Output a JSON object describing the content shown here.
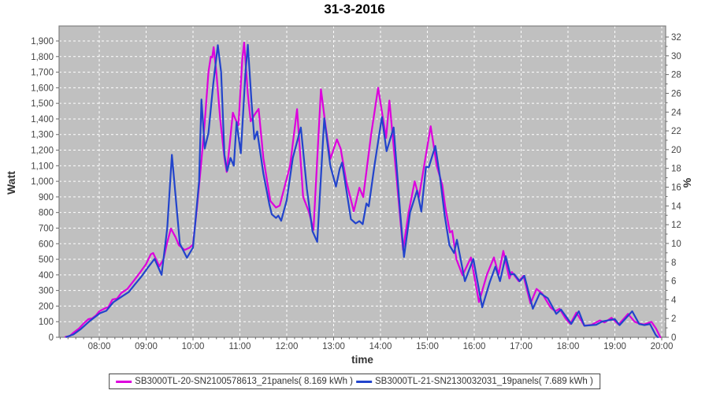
{
  "title": "31-3-2016",
  "colors": {
    "plot_background": "#c0c0c0",
    "plot_border": "#808080",
    "gridline": "#ffffff",
    "tick": "#666666",
    "tick_label": "#444444",
    "series1": "#dd00dd",
    "series2": "#2244cc"
  },
  "axes": {
    "y_left": {
      "label": "Watt",
      "min": 0,
      "max": 1900,
      "tick_step": 100,
      "tick_labels": [
        "0",
        "100",
        "200",
        "300",
        "400",
        "500",
        "600",
        "700",
        "800",
        "900",
        "1,000",
        "1,100",
        "1,200",
        "1,300",
        "1,400",
        "1,500",
        "1,600",
        "1,700",
        "1,800",
        "1,900"
      ]
    },
    "y_right": {
      "label": "%",
      "min": 0,
      "max": 32,
      "tick_step": 2,
      "tick_labels": [
        "0",
        "2",
        "4",
        "6",
        "8",
        "10",
        "12",
        "14",
        "16",
        "18",
        "20",
        "22",
        "24",
        "26",
        "28",
        "30",
        "32"
      ]
    },
    "x": {
      "label": "time",
      "first_hour": 8,
      "tick_labels": [
        "08:00",
        "09:00",
        "10:00",
        "11:00",
        "12:00",
        "13:00",
        "14:00",
        "15:00",
        "16:00",
        "17:00",
        "18:00",
        "19:00",
        "20:00"
      ]
    }
  },
  "legend": {
    "items": [
      {
        "label": "SB3000TL-20-SN2100578613_21panels( 8.169 kWh )",
        "color": "#dd00dd"
      },
      {
        "label": "SB3000TL-21-SN2130032031_19panels( 7.689 kWh )",
        "color": "#2244cc"
      }
    ]
  },
  "chart_data": {
    "type": "line",
    "title": "31-3-2016",
    "xlabel": "time",
    "ylabel": "Watt",
    "y2label": "%",
    "xlim_hours": [
      7.14,
      20.08
    ],
    "ylim": [
      0,
      1900
    ],
    "y2lim": [
      0,
      32
    ],
    "grid": true,
    "legend_position": "bottom",
    "series": [
      {
        "name": "SB3000TL-20-SN2100578613_21panels( 8.169 kWh )",
        "color": "#dd00dd",
        "units": "x=hour of day, y=Watt",
        "points": [
          [
            7.28,
            3
          ],
          [
            7.37,
            8
          ],
          [
            7.45,
            30
          ],
          [
            7.57,
            57
          ],
          [
            7.67,
            90
          ],
          [
            7.77,
            116
          ],
          [
            7.85,
            122
          ],
          [
            7.93,
            140
          ],
          [
            8.0,
            167
          ],
          [
            8.12,
            185
          ],
          [
            8.2,
            196
          ],
          [
            8.28,
            242
          ],
          [
            8.38,
            248
          ],
          [
            8.47,
            284
          ],
          [
            8.6,
            310
          ],
          [
            8.73,
            360
          ],
          [
            8.88,
            420
          ],
          [
            9.0,
            470
          ],
          [
            9.1,
            532
          ],
          [
            9.15,
            540
          ],
          [
            9.28,
            455
          ],
          [
            9.37,
            500
          ],
          [
            9.45,
            610
          ],
          [
            9.53,
            697
          ],
          [
            9.63,
            640
          ],
          [
            9.7,
            590
          ],
          [
            9.82,
            560
          ],
          [
            9.93,
            575
          ],
          [
            10.0,
            595
          ],
          [
            10.08,
            820
          ],
          [
            10.17,
            1100
          ],
          [
            10.25,
            1380
          ],
          [
            10.33,
            1700
          ],
          [
            10.38,
            1800
          ],
          [
            10.41,
            1795
          ],
          [
            10.44,
            1860
          ],
          [
            10.5,
            1690
          ],
          [
            10.58,
            1400
          ],
          [
            10.67,
            1150
          ],
          [
            10.72,
            1060
          ],
          [
            10.78,
            1230
          ],
          [
            10.85,
            1440
          ],
          [
            10.9,
            1400
          ],
          [
            10.97,
            1360
          ],
          [
            11.05,
            1780
          ],
          [
            11.09,
            1890
          ],
          [
            11.17,
            1560
          ],
          [
            11.23,
            1385
          ],
          [
            11.32,
            1430
          ],
          [
            11.4,
            1465
          ],
          [
            11.5,
            1150
          ],
          [
            11.65,
            874
          ],
          [
            11.77,
            832
          ],
          [
            11.85,
            845
          ],
          [
            12.07,
            1100
          ],
          [
            12.22,
            1463
          ],
          [
            12.35,
            900
          ],
          [
            12.47,
            806
          ],
          [
            12.57,
            688
          ],
          [
            12.73,
            1590
          ],
          [
            12.83,
            1350
          ],
          [
            12.93,
            1143
          ],
          [
            13.07,
            1269
          ],
          [
            13.15,
            1210
          ],
          [
            13.27,
            1000
          ],
          [
            13.43,
            808
          ],
          [
            13.55,
            959
          ],
          [
            13.63,
            899
          ],
          [
            13.8,
            1300
          ],
          [
            13.95,
            1600
          ],
          [
            14.12,
            1278
          ],
          [
            14.19,
            1518
          ],
          [
            14.35,
            1000
          ],
          [
            14.48,
            560
          ],
          [
            14.6,
            800
          ],
          [
            14.73,
            1000
          ],
          [
            14.82,
            899
          ],
          [
            15.07,
            1353
          ],
          [
            15.2,
            1100
          ],
          [
            15.32,
            975
          ],
          [
            15.38,
            840
          ],
          [
            15.48,
            672
          ],
          [
            15.53,
            682
          ],
          [
            15.62,
            500
          ],
          [
            15.75,
            397
          ],
          [
            15.93,
            512
          ],
          [
            16.1,
            226
          ],
          [
            16.27,
            402
          ],
          [
            16.42,
            512
          ],
          [
            16.52,
            402
          ],
          [
            16.62,
            554
          ],
          [
            16.75,
            377
          ],
          [
            16.8,
            419
          ],
          [
            16.95,
            360
          ],
          [
            17.05,
            394
          ],
          [
            17.2,
            217
          ],
          [
            17.33,
            310
          ],
          [
            17.45,
            280
          ],
          [
            17.63,
            190
          ],
          [
            17.73,
            167
          ],
          [
            17.82,
            183
          ],
          [
            17.95,
            120
          ],
          [
            18.05,
            86
          ],
          [
            18.18,
            158
          ],
          [
            18.35,
            74
          ],
          [
            18.5,
            80
          ],
          [
            18.68,
            108
          ],
          [
            18.78,
            95
          ],
          [
            18.93,
            125
          ],
          [
            19.08,
            82
          ],
          [
            19.28,
            150
          ],
          [
            19.42,
            100
          ],
          [
            19.52,
            88
          ],
          [
            19.62,
            82
          ],
          [
            19.78,
            99
          ],
          [
            19.88,
            55
          ],
          [
            19.97,
            0
          ]
        ]
      },
      {
        "name": "SB3000TL-21-SN2130032031_19panels( 7.689 kWh )",
        "color": "#2244cc",
        "units": "x=hour of day, y=Watt",
        "points": [
          [
            7.3,
            2
          ],
          [
            7.45,
            18
          ],
          [
            7.6,
            51
          ],
          [
            7.8,
            105
          ],
          [
            8.02,
            155
          ],
          [
            8.15,
            170
          ],
          [
            8.3,
            225
          ],
          [
            8.5,
            265
          ],
          [
            8.63,
            290
          ],
          [
            8.75,
            335
          ],
          [
            8.9,
            390
          ],
          [
            9.03,
            444
          ],
          [
            9.18,
            503
          ],
          [
            9.33,
            400
          ],
          [
            9.45,
            700
          ],
          [
            9.55,
            1170
          ],
          [
            9.63,
            900
          ],
          [
            9.72,
            600
          ],
          [
            9.87,
            510
          ],
          [
            10.0,
            575
          ],
          [
            10.13,
            1000
          ],
          [
            10.18,
            1525
          ],
          [
            10.25,
            1210
          ],
          [
            10.33,
            1310
          ],
          [
            10.43,
            1620
          ],
          [
            10.53,
            1873
          ],
          [
            10.6,
            1700
          ],
          [
            10.67,
            1170
          ],
          [
            10.73,
            1067
          ],
          [
            10.8,
            1150
          ],
          [
            10.87,
            1100
          ],
          [
            10.93,
            1380
          ],
          [
            11.02,
            1180
          ],
          [
            11.12,
            1700
          ],
          [
            11.17,
            1875
          ],
          [
            11.25,
            1500
          ],
          [
            11.31,
            1270
          ],
          [
            11.37,
            1320
          ],
          [
            11.5,
            1050
          ],
          [
            11.63,
            850
          ],
          [
            11.68,
            789
          ],
          [
            11.77,
            765
          ],
          [
            11.82,
            780
          ],
          [
            11.88,
            747
          ],
          [
            12.0,
            880
          ],
          [
            12.13,
            1150
          ],
          [
            12.3,
            1345
          ],
          [
            12.43,
            950
          ],
          [
            12.55,
            680
          ],
          [
            12.65,
            612
          ],
          [
            12.8,
            1404
          ],
          [
            12.93,
            1100
          ],
          [
            13.05,
            966
          ],
          [
            13.13,
            1080
          ],
          [
            13.18,
            1120
          ],
          [
            13.37,
            757
          ],
          [
            13.47,
            730
          ],
          [
            13.55,
            745
          ],
          [
            13.62,
            725
          ],
          [
            13.7,
            858
          ],
          [
            13.75,
            840
          ],
          [
            13.87,
            1100
          ],
          [
            14.03,
            1412
          ],
          [
            14.13,
            1193
          ],
          [
            14.28,
            1345
          ],
          [
            14.42,
            800
          ],
          [
            14.5,
            515
          ],
          [
            14.63,
            800
          ],
          [
            14.78,
            941
          ],
          [
            14.87,
            806
          ],
          [
            14.97,
            1092
          ],
          [
            15.03,
            1090
          ],
          [
            15.17,
            1227
          ],
          [
            15.27,
            1025
          ],
          [
            15.37,
            780
          ],
          [
            15.47,
            590
          ],
          [
            15.57,
            540
          ],
          [
            15.63,
            625
          ],
          [
            15.8,
            360
          ],
          [
            15.98,
            503
          ],
          [
            16.17,
            192
          ],
          [
            16.33,
            352
          ],
          [
            16.45,
            453
          ],
          [
            16.55,
            360
          ],
          [
            16.67,
            520
          ],
          [
            16.77,
            402
          ],
          [
            16.85,
            406
          ],
          [
            16.97,
            360
          ],
          [
            17.07,
            394
          ],
          [
            17.25,
            183
          ],
          [
            17.4,
            284
          ],
          [
            17.57,
            250
          ],
          [
            17.75,
            150
          ],
          [
            17.85,
            178
          ],
          [
            18.07,
            86
          ],
          [
            18.23,
            167
          ],
          [
            18.35,
            74
          ],
          [
            18.6,
            80
          ],
          [
            18.73,
            101
          ],
          [
            19.0,
            116
          ],
          [
            19.1,
            78
          ],
          [
            19.37,
            167
          ],
          [
            19.52,
            85
          ],
          [
            19.63,
            78
          ],
          [
            19.75,
            85
          ],
          [
            19.87,
            15
          ],
          [
            19.92,
            0
          ]
        ]
      }
    ]
  }
}
